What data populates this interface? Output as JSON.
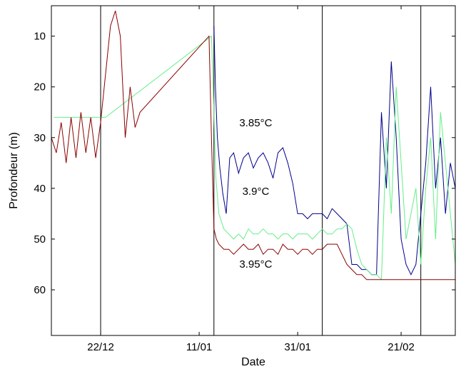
{
  "chart_data": {
    "type": "line",
    "xlabel": "Date",
    "ylabel": "Profondeur (m)",
    "ylim": [
      69,
      4
    ],
    "y_reversed": true,
    "y_ticks": [
      10,
      20,
      30,
      40,
      50,
      60
    ],
    "x_range_days": [
      0,
      82
    ],
    "x_ticks": [
      {
        "day": 10,
        "label": "22/12"
      },
      {
        "day": 30,
        "label": "11/01"
      },
      {
        "day": 50,
        "label": "31/01"
      },
      {
        "day": 71,
        "label": "21/02"
      }
    ],
    "vertical_markers_days": [
      10,
      33,
      55,
      75
    ],
    "grid": false,
    "series": [
      {
        "color": "#00008b",
        "x": [
          33,
          33.3,
          33.7,
          34.2,
          34.8,
          35.5,
          36.2,
          37,
          38,
          39,
          40,
          41,
          42,
          43,
          44,
          45,
          46,
          47,
          48,
          49,
          50,
          51,
          52,
          53,
          54,
          55,
          56,
          57,
          58,
          59,
          60,
          61,
          62,
          63,
          64,
          65,
          66,
          67,
          68,
          69,
          70,
          71,
          72,
          73,
          74,
          75,
          76,
          77,
          78,
          79,
          80,
          81,
          82
        ],
        "y": [
          8,
          20,
          30,
          36,
          41,
          45,
          34,
          33,
          37,
          34,
          33,
          36,
          34,
          33,
          35,
          38,
          33,
          32,
          35,
          39,
          45,
          45,
          46,
          45,
          45,
          45,
          46,
          44,
          45,
          46,
          47,
          55,
          55,
          56,
          56,
          57,
          57,
          25,
          40,
          15,
          30,
          50,
          55,
          57,
          55,
          45,
          35,
          20,
          40,
          30,
          45,
          35,
          40
        ]
      },
      {
        "color": "#66ee88",
        "x": [
          0.5,
          3,
          5,
          7,
          10,
          11,
          32.5,
          33,
          33.4,
          34,
          35,
          36,
          37,
          38,
          39,
          40,
          41,
          42,
          43,
          44,
          45,
          46,
          47,
          48,
          49,
          50,
          51,
          52,
          53,
          54,
          55,
          56,
          57,
          58,
          59,
          60,
          61,
          62,
          63,
          64,
          65,
          66,
          67,
          68,
          69,
          70,
          71,
          72,
          73,
          74,
          75,
          76,
          77,
          78,
          79,
          80,
          81,
          82
        ],
        "y": [
          26,
          26,
          26,
          26,
          26,
          26,
          10,
          25,
          38,
          45,
          48,
          49,
          50,
          49,
          50,
          48,
          49,
          49,
          48,
          49,
          49,
          50,
          49,
          49,
          50,
          49,
          49,
          49,
          50,
          49,
          48,
          49,
          49,
          48,
          48,
          47,
          48,
          52,
          55,
          56,
          57,
          57,
          58,
          30,
          45,
          20,
          35,
          50,
          45,
          40,
          55,
          40,
          30,
          50,
          25,
          35,
          45,
          55
        ]
      },
      {
        "color": "#8b0000",
        "x": [
          0,
          1,
          2,
          3,
          4,
          5,
          6,
          7,
          8,
          9,
          10,
          12,
          13,
          14,
          15,
          16,
          17,
          18,
          32,
          32.5,
          33,
          33.5,
          34,
          35,
          36,
          37,
          38,
          39,
          40,
          41,
          42,
          43,
          44,
          45,
          46,
          47,
          48,
          49,
          50,
          51,
          52,
          53,
          54,
          55,
          56,
          57,
          58,
          59,
          60,
          61,
          62,
          63,
          64,
          65,
          66,
          67,
          68,
          69,
          70,
          71,
          72,
          73,
          74,
          75,
          76,
          77,
          78,
          79,
          80,
          81,
          82
        ],
        "y": [
          30,
          33,
          27,
          35,
          26,
          34,
          25,
          33,
          26,
          34,
          27,
          8,
          5,
          10,
          30,
          20,
          28,
          25,
          10,
          30,
          48,
          50,
          51,
          52,
          52,
          53,
          52,
          51,
          52,
          52,
          51,
          53,
          52,
          52,
          53,
          51,
          52,
          52,
          53,
          52,
          52,
          53,
          52,
          52,
          51,
          51,
          51,
          53,
          55,
          56,
          57,
          57,
          58,
          58,
          58,
          58,
          58,
          58,
          58,
          58,
          58,
          58,
          58,
          58,
          58,
          58,
          58,
          58,
          58,
          58,
          58
        ]
      }
    ],
    "annotations": [
      {
        "text": "3.85°C",
        "day": 41.5,
        "depth": 27.8
      },
      {
        "text": "3.9°C",
        "day": 41.5,
        "depth": 41.3
      },
      {
        "text": "3.95°C",
        "day": 41.5,
        "depth": 55.6
      }
    ]
  }
}
